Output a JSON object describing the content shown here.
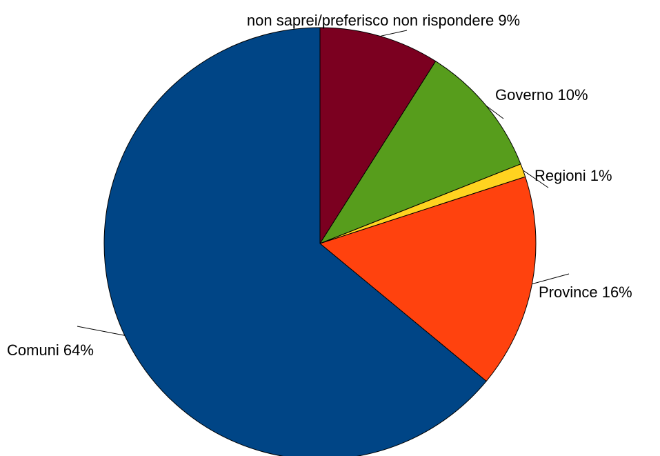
{
  "chart_data": {
    "type": "pie",
    "title": "",
    "start": "top",
    "direction": "clockwise",
    "slices": [
      {
        "label": "non saprei/preferisco non rispondere",
        "value": 9,
        "label_text": "non saprei/preferisco non rispondere 9%",
        "color": "#7b0020"
      },
      {
        "label": "Governo",
        "value": 10,
        "label_text": "Governo 10%",
        "color": "#579d1c"
      },
      {
        "label": "Regioni",
        "value": 1,
        "label_text": "Regioni 1%",
        "color": "#ffd320"
      },
      {
        "label": "Province",
        "value": 16,
        "label_text": "Province 16%",
        "color": "#ff420e"
      },
      {
        "label": "Comuni",
        "value": 64,
        "label_text": "Comuni 64%",
        "color": "#004586"
      }
    ]
  }
}
